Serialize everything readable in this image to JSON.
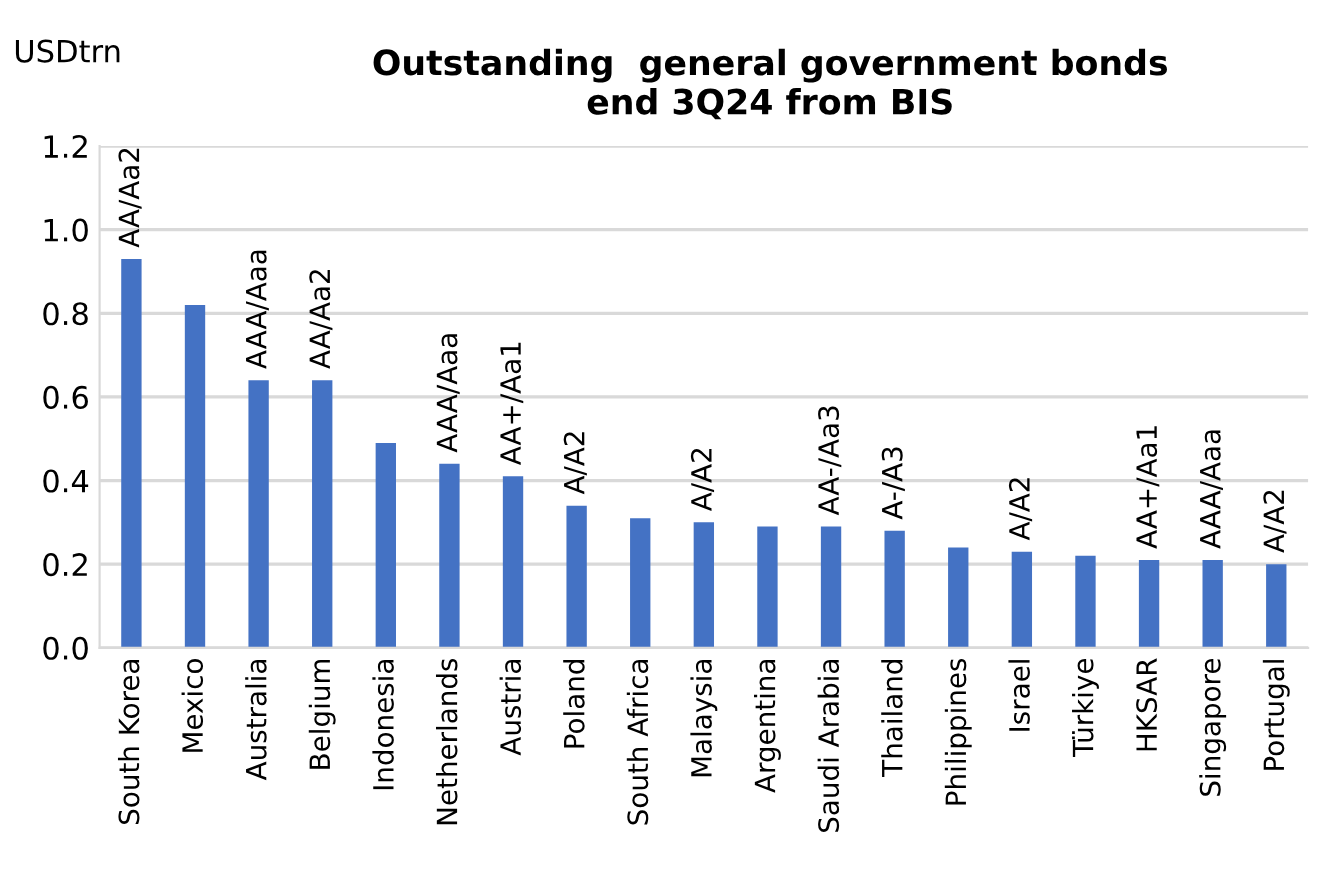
{
  "chart_data": {
    "type": "bar",
    "title": "Outstanding  general government bonds\nend 3Q24 from BIS",
    "ylabel": "USDtrn",
    "categories": [
      "South Korea",
      "Mexico",
      "Australia",
      "Belgium",
      "Indonesia",
      "Netherlands",
      "Austria",
      "Poland",
      "South Africa",
      "Malaysia",
      "Argentina",
      "Saudi Arabia",
      "Thailand",
      "Philippines",
      "Israel",
      "Türkiye",
      "HKSAR",
      "Singapore",
      "Portugal"
    ],
    "values": [
      0.93,
      0.82,
      0.64,
      0.64,
      0.49,
      0.44,
      0.41,
      0.34,
      0.31,
      0.3,
      0.29,
      0.29,
      0.28,
      0.24,
      0.23,
      0.22,
      0.21,
      0.21,
      0.2
    ],
    "color": "#4472c4",
    "ylim": [
      0,
      1.2
    ],
    "yticks": [
      {
        "value": 0,
        "label": "0.0"
      },
      0.2,
      0.4,
      0.6,
      0.8,
      {
        "value": 1.0,
        "label": "1.0"
      },
      1.2
    ],
    "grid": "y",
    "annotations": [
      {
        "text": "AA/Aa2",
        "x": "South Korea",
        "y": 0.93
      },
      {
        "text": "AAA/Aaa",
        "x": "Australia",
        "y": 0.64
      },
      {
        "text": "AA/Aa2",
        "x": "Belgium",
        "y": 0.64
      },
      {
        "text": "AAA/Aaa",
        "x": "Netherlands",
        "y": 0.44
      },
      {
        "text": "AA+/Aa1",
        "x": "Austria",
        "y": 0.41
      },
      {
        "text": "A/A2",
        "x": "Poland",
        "y": 0.34
      },
      {
        "text": "A/A2",
        "x": "Malaysia",
        "y": 0.3
      },
      {
        "text": "AA-/Aa3",
        "x": "Saudi Arabia",
        "y": 0.29
      },
      {
        "text": "A-/A3",
        "x": "Thailand",
        "y": 0.28
      },
      {
        "text": "A/A2",
        "x": "Israel",
        "y": 0.23
      },
      {
        "text": "AA+/Aa1",
        "x": "HKSAR",
        "y": 0.21
      },
      {
        "text": "AAA/Aaa",
        "x": "Singapore",
        "y": 0.21
      },
      {
        "text": "A/A2",
        "x": "Portugal",
        "y": 0.2
      }
    ]
  }
}
